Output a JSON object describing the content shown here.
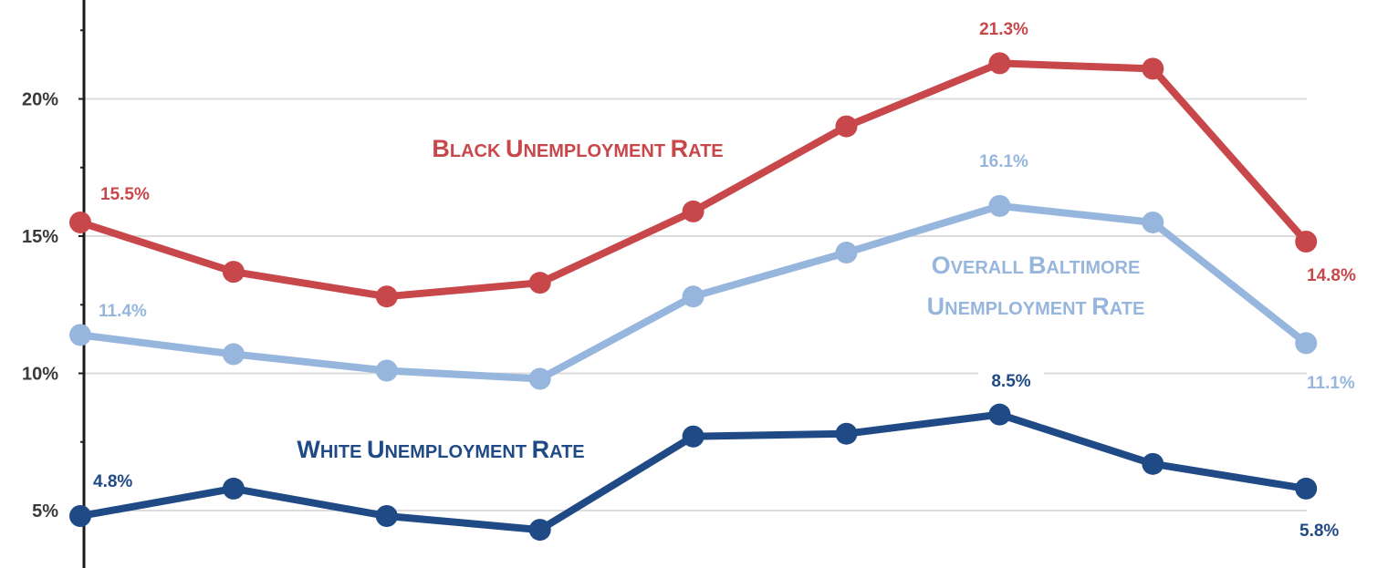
{
  "chart_data": {
    "type": "line",
    "ylim": [
      3,
      23
    ],
    "yticks": [
      5,
      10,
      15,
      20
    ],
    "ytick_labels": [
      "5%",
      "10%",
      "15%",
      "20%"
    ],
    "grid": true,
    "x": [
      1,
      2,
      3,
      4,
      5,
      6,
      7,
      8,
      9
    ],
    "series": [
      {
        "name": "Black Unemployment Rate",
        "color": "#c8474b",
        "values": [
          15.5,
          13.7,
          12.8,
          13.3,
          15.9,
          19.0,
          21.3,
          21.1,
          14.8
        ]
      },
      {
        "name": "Overall Baltimore Unemployment Rate",
        "name_lines": [
          "Overall Baltimore",
          "Unemployment Rate"
        ],
        "color": "#97b6de",
        "values": [
          11.4,
          10.7,
          10.1,
          9.8,
          12.8,
          14.4,
          16.1,
          15.5,
          11.1
        ]
      },
      {
        "name": "White Unemployment Rate",
        "color": "#1f4a85",
        "values": [
          4.8,
          5.8,
          4.8,
          4.3,
          7.7,
          7.8,
          8.5,
          6.7,
          5.8
        ]
      }
    ],
    "data_labels": [
      {
        "series": 0,
        "index": 0,
        "text": "15.5%"
      },
      {
        "series": 0,
        "index": 6,
        "text": "21.3%"
      },
      {
        "series": 0,
        "index": 8,
        "text": "14.8%"
      },
      {
        "series": 1,
        "index": 0,
        "text": "11.4%"
      },
      {
        "series": 1,
        "index": 6,
        "text": "16.1%"
      },
      {
        "series": 1,
        "index": 8,
        "text": "11.1%"
      },
      {
        "series": 2,
        "index": 0,
        "text": "4.8%"
      },
      {
        "series": 2,
        "index": 6,
        "text": "8.5%"
      },
      {
        "series": 2,
        "index": 8,
        "text": "5.8%"
      }
    ]
  }
}
